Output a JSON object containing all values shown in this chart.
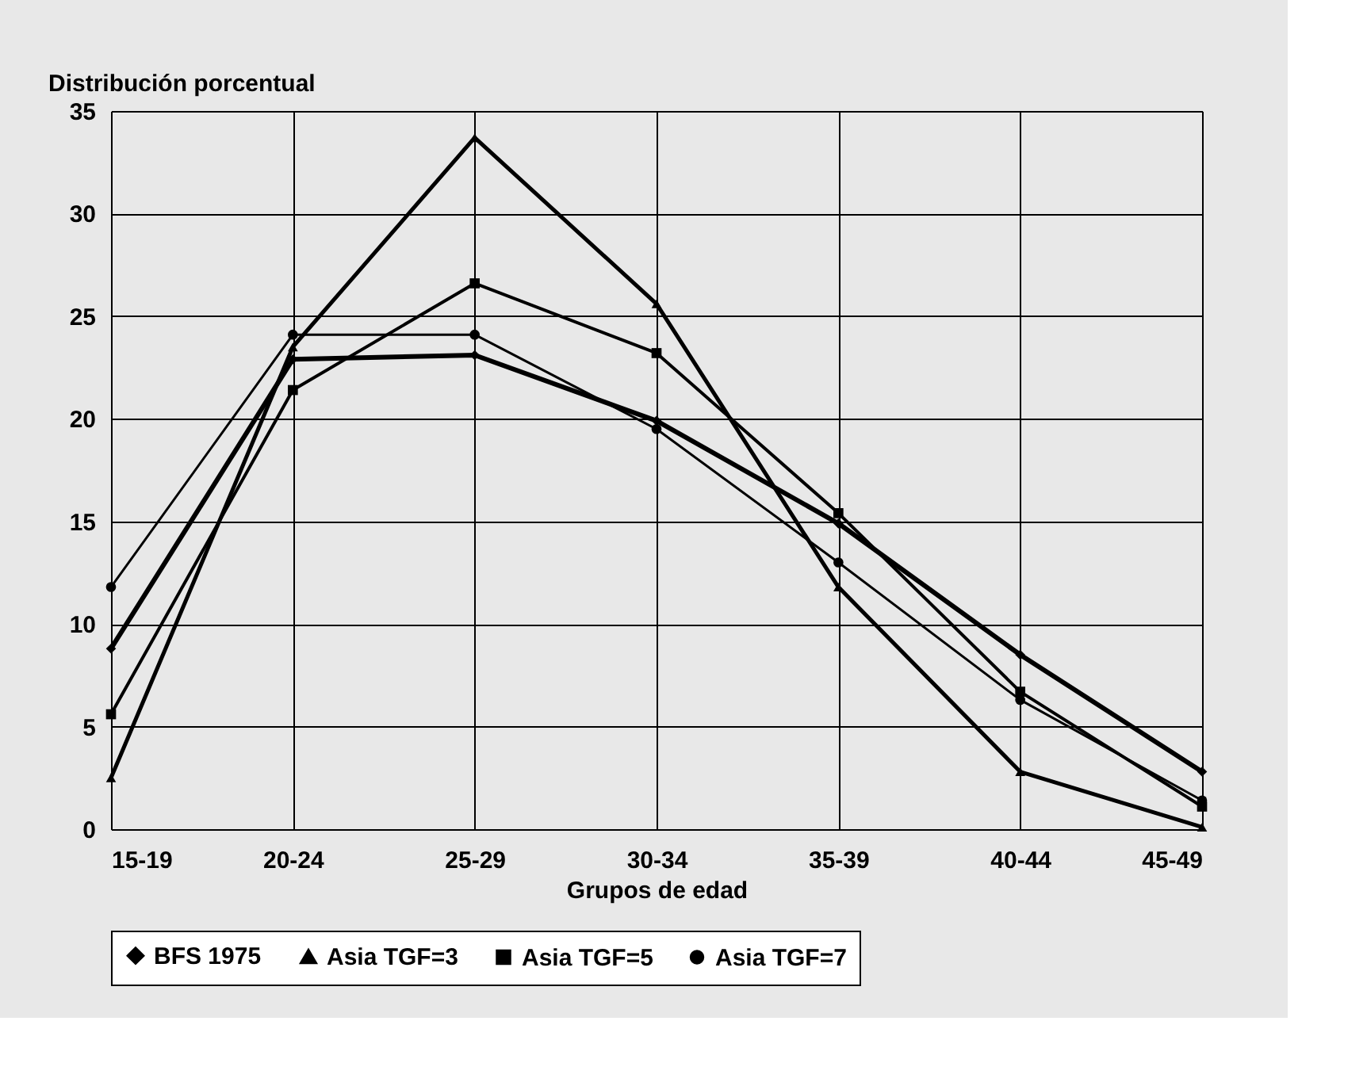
{
  "chart_data": {
    "type": "line",
    "ylabel": "Distribución porcentual",
    "xlabel": "Grupos  de edad",
    "categories": [
      "15-19",
      "20-24",
      "25-29",
      "30-34",
      "35-39",
      "40-44",
      "45-49"
    ],
    "ylim": [
      0,
      35
    ],
    "yticks": [
      0,
      5,
      10,
      15,
      20,
      25,
      30,
      35
    ],
    "grid": true,
    "legend": "bottom",
    "series": [
      {
        "name": "BFS 1975",
        "color": "#000000",
        "marker": "diamond",
        "values": [
          8.8,
          22.9,
          23.1,
          19.9,
          14.9,
          8.5,
          2.8
        ]
      },
      {
        "name": "Asia TGF=3",
        "color": "#000000",
        "marker": "triangle",
        "values": [
          2.5,
          23.5,
          33.7,
          25.6,
          11.8,
          2.8,
          0.1
        ]
      },
      {
        "name": "Asia TGF=5",
        "color": "#000000",
        "marker": "square",
        "values": [
          5.6,
          21.4,
          26.6,
          23.2,
          15.4,
          6.7,
          1.1
        ]
      },
      {
        "name": "Asia TGF=7",
        "color": "#000000",
        "marker": "circle",
        "values": [
          11.8,
          24.1,
          24.1,
          19.5,
          13.0,
          6.3,
          1.4
        ]
      }
    ]
  }
}
